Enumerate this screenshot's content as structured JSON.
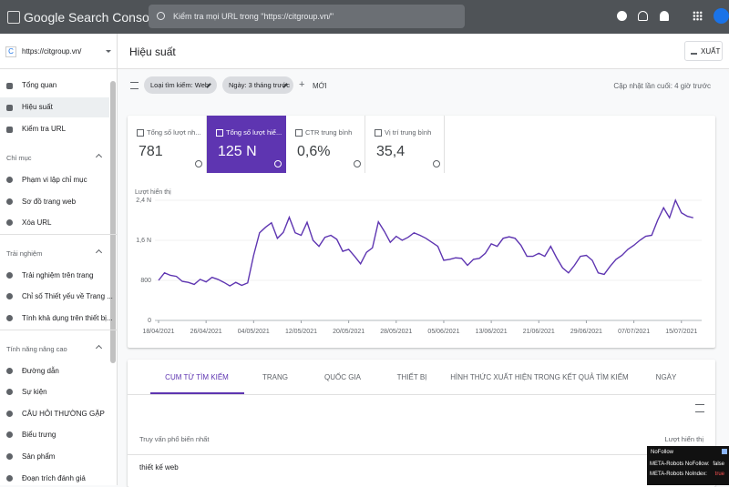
{
  "header": {
    "product": "Google Search Console",
    "search_placeholder": "Kiểm tra mọi URL trong \"https://citgroup.vn/\""
  },
  "sidebar": {
    "property": "https://citgroup.vn/",
    "items": [
      "Tổng quan",
      "Hiệu suất",
      "Kiểm tra URL"
    ],
    "sections": [
      {
        "title": "Chỉ mục",
        "items": [
          "Phạm vi lập chỉ mục",
          "Sơ đồ trang web",
          "Xóa URL"
        ]
      },
      {
        "title": "Trải nghiệm",
        "items": [
          "Trải nghiệm trên trang",
          "Chỉ số Thiết yếu về Trang ...",
          "Tính khả dụng trên thiết bị..."
        ]
      },
      {
        "title": "Tính năng nâng cao",
        "items": [
          "Đường dẫn",
          "Sự kiện",
          "CÂU HỎI THƯỜNG GẶP",
          "Biểu trưng",
          "Sản phẩm",
          "Đoạn trích đánh giá"
        ]
      }
    ]
  },
  "page": {
    "title": "Hiệu suất",
    "export": "XUẤT",
    "filters": [
      "Loại tìm kiếm: Web",
      "Ngày: 3 tháng trước"
    ],
    "new": "MỚI",
    "updated": "Cập nhật lần cuối: 4 giờ trước"
  },
  "metrics": [
    {
      "label": "Tổng số lượt nh...",
      "value": "781"
    },
    {
      "label": "Tổng số lượt hiể...",
      "value": "125 N"
    },
    {
      "label": "CTR trung bình",
      "value": "0,6%"
    },
    {
      "label": "Vị trí trung bình",
      "value": "35,4"
    }
  ],
  "chart_data": {
    "type": "line",
    "y_label": "Lượt hiển thị",
    "color": "#5e35b1",
    "grid": true,
    "x": [
      "18/04/2021",
      "19/04/2021",
      "20/04/2021",
      "21/04/2021",
      "22/04/2021",
      "23/04/2021",
      "24/04/2021",
      "25/04/2021",
      "26/04/2021",
      "27/04/2021",
      "28/04/2021",
      "29/04/2021",
      "30/04/2021",
      "01/05/2021",
      "02/05/2021",
      "03/05/2021",
      "04/05/2021",
      "05/05/2021",
      "06/05/2021",
      "07/05/2021",
      "08/05/2021",
      "09/05/2021",
      "10/05/2021",
      "11/05/2021",
      "12/05/2021",
      "13/05/2021",
      "14/05/2021",
      "15/05/2021",
      "16/05/2021",
      "17/05/2021",
      "18/05/2021",
      "19/05/2021",
      "20/05/2021",
      "21/05/2021",
      "22/05/2021",
      "23/05/2021",
      "24/05/2021",
      "25/05/2021",
      "26/05/2021",
      "27/05/2021",
      "28/05/2021",
      "29/05/2021",
      "30/05/2021",
      "31/05/2021",
      "01/06/2021",
      "02/06/2021",
      "03/06/2021",
      "04/06/2021",
      "05/06/2021",
      "06/06/2021",
      "07/06/2021",
      "08/06/2021",
      "09/06/2021",
      "10/06/2021",
      "11/06/2021",
      "12/06/2021",
      "13/06/2021",
      "14/06/2021",
      "15/06/2021",
      "16/06/2021",
      "17/06/2021",
      "18/06/2021",
      "19/06/2021",
      "20/06/2021",
      "21/06/2021",
      "22/06/2021",
      "23/06/2021",
      "24/06/2021",
      "25/06/2021",
      "26/06/2021",
      "27/06/2021",
      "28/06/2021",
      "29/06/2021",
      "30/06/2021",
      "01/07/2021",
      "02/07/2021",
      "03/07/2021",
      "04/07/2021",
      "05/07/2021",
      "06/07/2021",
      "07/07/2021",
      "08/07/2021",
      "09/07/2021",
      "10/07/2021",
      "11/07/2021",
      "12/07/2021",
      "13/07/2021",
      "14/07/2021",
      "15/07/2021",
      "16/07/2021",
      "17/07/2021"
    ],
    "values": [
      800,
      950,
      900,
      880,
      780,
      760,
      720,
      820,
      770,
      860,
      820,
      760,
      690,
      760,
      700,
      750,
      1300,
      1750,
      1860,
      1950,
      1640,
      1760,
      2060,
      1750,
      1700,
      1960,
      1600,
      1480,
      1660,
      1700,
      1620,
      1380,
      1420,
      1280,
      1130,
      1360,
      1450,
      1970,
      1780,
      1560,
      1680,
      1600,
      1660,
      1750,
      1700,
      1640,
      1560,
      1480,
      1200,
      1220,
      1250,
      1240,
      1100,
      1220,
      1240,
      1340,
      1530,
      1480,
      1640,
      1670,
      1640,
      1500,
      1280,
      1280,
      1340,
      1280,
      1480,
      1250,
      1050,
      950,
      1100,
      1280,
      1300,
      1200,
      950,
      920,
      1080,
      1220,
      1300,
      1420,
      1500,
      1600,
      1680,
      1700,
      2000,
      2250,
      2050,
      2400,
      2150,
      2080,
      2050
    ],
    "xticks": [
      "18/04/2021",
      "26/04/2021",
      "04/05/2021",
      "12/05/2021",
      "20/05/2021",
      "28/05/2021",
      "05/06/2021",
      "13/06/2021",
      "21/06/2021",
      "29/06/2021",
      "07/07/2021",
      "15/07/2021"
    ],
    "ylim": [
      0,
      2400
    ],
    "yticks": [
      0,
      800,
      {
        "value": 1600,
        "label": "1,6 N"
      },
      {
        "value": 2400,
        "label": "2,4 N"
      }
    ]
  },
  "tabs": [
    "CỤM TỪ TÌM KIẾM",
    "TRANG",
    "QUỐC GIA",
    "THIẾT BỊ",
    "HÌNH THỨC XUẤT HIỆN TRONG KẾT QUẢ TÌM KIẾM",
    "NGÀY"
  ],
  "table": {
    "columns": [
      "Truy vấn phổ biến nhất",
      "Lượt hiển thị"
    ],
    "rows": [
      [
        "thiết kế web"
      ]
    ]
  },
  "extension": {
    "title": "NoFollow",
    "rows": [
      [
        "META-Robots NoFollow:",
        "false"
      ],
      [
        "META-Robots NoIndex:",
        "true"
      ]
    ]
  }
}
